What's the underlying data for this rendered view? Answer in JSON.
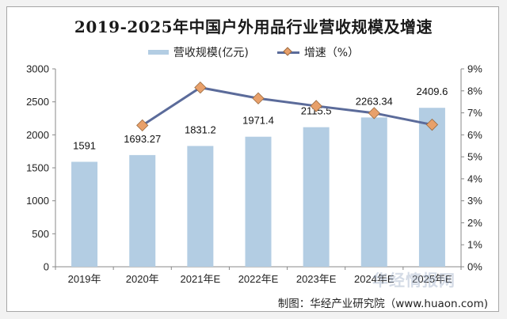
{
  "chart_data": {
    "type": "bar+line",
    "title": "2019-2025年中国户外用品行业营收规模及增速",
    "categories": [
      "2019年",
      "2020年",
      "2021年E",
      "2022年E",
      "2023年E",
      "2024年E",
      "2025年E"
    ],
    "series": [
      {
        "name": "营收规模(亿元)",
        "type": "bar",
        "axis": "left",
        "values": [
          1591,
          1693.27,
          1831.2,
          1971.4,
          2115.5,
          2263.34,
          2409.6
        ],
        "labels": [
          "1591",
          "1693.27",
          "1831.2",
          "1971.4",
          "2115.5",
          "2263.34",
          "2409.6"
        ],
        "color": "#b3cde3"
      },
      {
        "name": "增速（%）",
        "type": "line",
        "axis": "right",
        "values": [
          null,
          6.43,
          8.15,
          7.66,
          7.31,
          6.99,
          6.46
        ],
        "color": "#5b6b9a",
        "marker_color": "#e8a06a"
      }
    ],
    "left_axis": {
      "ylim": [
        0,
        3000
      ],
      "ticks": [
        0,
        500,
        1000,
        1500,
        2000,
        2500,
        3000
      ],
      "tick_labels": [
        "0",
        "500",
        "1000",
        "1500",
        "2000",
        "2500",
        "3000"
      ]
    },
    "right_axis": {
      "ylim": [
        0,
        9
      ],
      "ticks": [
        0,
        1,
        2,
        3,
        4,
        5,
        6,
        7,
        8,
        9
      ],
      "tick_labels": [
        "0%",
        "1%",
        "2%",
        "3%",
        "4%",
        "5%",
        "6%",
        "7%",
        "8%",
        "9%"
      ]
    },
    "legend": {
      "position": "top-center",
      "entries": [
        "营收规模(亿元)",
        "增速（%）"
      ]
    },
    "grid": false
  },
  "source": "制图：华经产业研究院（www.huaon.com)",
  "watermark": "华经情报网"
}
